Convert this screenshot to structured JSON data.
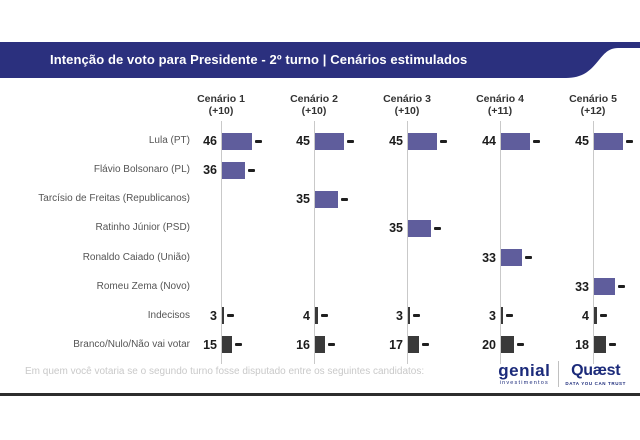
{
  "header": {
    "title": "Intenção de voto para Presidente - 2º turno | Cenários estimulados",
    "banner_color": "#2b307e"
  },
  "footnote": "Em quem você votaria se o segundo turno fosse disputado entre os seguintes candidatos:",
  "chart_data": {
    "type": "bar",
    "orientation": "horizontal",
    "unit": "%",
    "scenarios": [
      {
        "label": "Cenário 1",
        "sub": "(+10)"
      },
      {
        "label": "Cenário 2",
        "sub": "(+10)"
      },
      {
        "label": "Cenário 3",
        "sub": "(+10)"
      },
      {
        "label": "Cenário 4",
        "sub": "(+11)"
      },
      {
        "label": "Cenário 5",
        "sub": "(+12)"
      }
    ],
    "categories": [
      "Lula (PT)",
      "Flávio Bolsonaro (PL)",
      "Tarcísio de Freitas (Republicanos)",
      "Ratinho Júnior (PSD)",
      "Ronaldo Caiado (União)",
      "Romeu Zema (Novo)",
      "Indecisos",
      "Branco/Nulo/Não vai votar"
    ],
    "series": [
      {
        "name": "Cenário 1 (+10)",
        "values": [
          46,
          36,
          null,
          null,
          null,
          null,
          3,
          15
        ]
      },
      {
        "name": "Cenário 2 (+10)",
        "values": [
          45,
          null,
          35,
          null,
          null,
          null,
          4,
          16
        ]
      },
      {
        "name": "Cenário 3 (+10)",
        "values": [
          45,
          null,
          null,
          35,
          null,
          null,
          3,
          17
        ]
      },
      {
        "name": "Cenário 4 (+11)",
        "values": [
          44,
          null,
          null,
          null,
          33,
          null,
          3,
          20
        ]
      },
      {
        "name": "Cenário 5 (+12)",
        "values": [
          45,
          null,
          null,
          null,
          null,
          33,
          4,
          18
        ]
      }
    ],
    "colors": {
      "candidate_bar": "#5f5d9c",
      "other_bar": "#3a3a3a",
      "axis_line": "#c9c9c9",
      "error_whisker": "#1f1f1f"
    },
    "has_error_whiskers": true,
    "legend_position": "none",
    "grid": false
  },
  "logos": {
    "genial": {
      "name": "genial",
      "sub": "investimentos"
    },
    "quaest": {
      "name": "Quæst",
      "sub": "DATA YOU CAN TRUST"
    }
  }
}
